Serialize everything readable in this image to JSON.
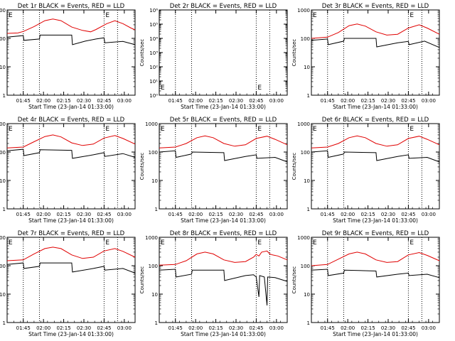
{
  "figure": {
    "xlabel": "Start Time (23-Jan-14 01:33:00)",
    "ylabel": "Counts/sec",
    "xtick_labels": [
      "01:45",
      "02:00",
      "02:15",
      "02:30",
      "02:45",
      "03:00"
    ],
    "marker_labels": [
      "E",
      "E"
    ],
    "colors": {
      "events": "#000000",
      "lld": "#e00000",
      "axis": "#000000"
    }
  },
  "chart_data": [
    {
      "type": "line",
      "title": "Det 1r BLACK = Events, RED = LLD",
      "ylim": [
        1,
        1000
      ],
      "yscale": "log",
      "ytick_labels": [
        "1",
        "10",
        "100",
        "1000"
      ],
      "vlines_min": [
        12,
        24,
        72,
        82
      ],
      "series": [
        {
          "key": "lld",
          "color": "#e00000",
          "values": [
            [
              0,
              150
            ],
            [
              8,
              155
            ],
            [
              12,
              175
            ],
            [
              20,
              260
            ],
            [
              28,
              420
            ],
            [
              34,
              480
            ],
            [
              40,
              420
            ],
            [
              48,
              250
            ],
            [
              56,
              190
            ],
            [
              62,
              170
            ],
            [
              66,
              205
            ],
            [
              74,
              330
            ],
            [
              80,
              420
            ],
            [
              86,
              330
            ],
            [
              92,
              230
            ],
            [
              95,
              200
            ]
          ]
        },
        {
          "key": "events",
          "color": "#000000",
          "values": [
            [
              0,
              110
            ],
            [
              12,
              125
            ],
            [
              12.5,
              85
            ],
            [
              24,
              95
            ],
            [
              24.5,
              130
            ],
            [
              48,
              130
            ],
            [
              48.5,
              60
            ],
            [
              58,
              80
            ],
            [
              66,
              95
            ],
            [
              72,
              105
            ],
            [
              72.5,
              70
            ],
            [
              86,
              78
            ],
            [
              95,
              60
            ]
          ]
        }
      ]
    },
    {
      "type": "line",
      "title": "Det 2r BLACK = Events, RED = LLD",
      "ylim": [
        1,
        1000000
      ],
      "yscale": "log",
      "ytick_labels": [
        "10⁰",
        "10¹",
        "10²",
        "10³",
        "10⁴",
        "10⁵",
        "10⁶"
      ],
      "vlines_min": [
        12,
        24,
        72,
        82
      ],
      "series": []
    },
    {
      "type": "line",
      "title": "Det 3r BLACK = Events, RED = LLD",
      "ylim": [
        1,
        1000
      ],
      "yscale": "log",
      "ytick_labels": [
        "1",
        "10",
        "100",
        "1000"
      ],
      "vlines_min": [
        12,
        24,
        72,
        82
      ],
      "series": [
        {
          "key": "lld",
          "color": "#e00000",
          "values": [
            [
              0,
              100
            ],
            [
              12,
              110
            ],
            [
              20,
              160
            ],
            [
              28,
              280
            ],
            [
              34,
              320
            ],
            [
              40,
              270
            ],
            [
              48,
              170
            ],
            [
              56,
              130
            ],
            [
              64,
              140
            ],
            [
              72,
              230
            ],
            [
              80,
              300
            ],
            [
              86,
              230
            ],
            [
              95,
              140
            ]
          ]
        },
        {
          "key": "events",
          "color": "#000000",
          "values": [
            [
              0,
              85
            ],
            [
              12,
              95
            ],
            [
              12.5,
              60
            ],
            [
              24,
              80
            ],
            [
              24.5,
              100
            ],
            [
              48,
              100
            ],
            [
              48.5,
              50
            ],
            [
              64,
              70
            ],
            [
              72,
              78
            ],
            [
              72.5,
              60
            ],
            [
              84,
              80
            ],
            [
              95,
              48
            ]
          ]
        }
      ]
    },
    {
      "type": "line",
      "title": "Det 4r BLACK = Events, RED = LLD",
      "ylim": [
        1,
        1000
      ],
      "yscale": "log",
      "ytick_labels": [
        "1",
        "10",
        "100",
        "1000"
      ],
      "vlines_min": [
        12,
        24,
        72,
        82
      ],
      "series": [
        {
          "key": "lld",
          "color": "#e00000",
          "values": [
            [
              0,
              140
            ],
            [
              12,
              150
            ],
            [
              20,
              230
            ],
            [
              28,
              350
            ],
            [
              34,
              400
            ],
            [
              40,
              340
            ],
            [
              48,
              210
            ],
            [
              56,
              170
            ],
            [
              64,
              190
            ],
            [
              72,
              310
            ],
            [
              80,
              380
            ],
            [
              86,
              300
            ],
            [
              95,
              190
            ]
          ]
        },
        {
          "key": "events",
          "color": "#000000",
          "values": [
            [
              0,
              110
            ],
            [
              12,
              125
            ],
            [
              12.5,
              75
            ],
            [
              24,
              95
            ],
            [
              24.5,
              120
            ],
            [
              48,
              115
            ],
            [
              48.5,
              60
            ],
            [
              64,
              80
            ],
            [
              72,
              95
            ],
            [
              72.5,
              70
            ],
            [
              86,
              88
            ],
            [
              95,
              65
            ]
          ]
        }
      ]
    },
    {
      "type": "line",
      "title": "Det 5r BLACK = Events, RED = LLD",
      "ylim": [
        1,
        1000
      ],
      "yscale": "log",
      "ytick_labels": [
        "1",
        "10",
        "100",
        "1000"
      ],
      "vlines_min": [
        12,
        24,
        72,
        82
      ],
      "series": [
        {
          "key": "lld",
          "color": "#e00000",
          "values": [
            [
              0,
              140
            ],
            [
              12,
              150
            ],
            [
              20,
              200
            ],
            [
              28,
              320
            ],
            [
              34,
              370
            ],
            [
              40,
              320
            ],
            [
              48,
              200
            ],
            [
              56,
              160
            ],
            [
              64,
              180
            ],
            [
              72,
              300
            ],
            [
              80,
              360
            ],
            [
              86,
              280
            ],
            [
              95,
              180
            ]
          ]
        },
        {
          "key": "events",
          "color": "#000000",
          "values": [
            [
              0,
              100
            ],
            [
              12,
              110
            ],
            [
              12.5,
              65
            ],
            [
              24,
              85
            ],
            [
              24.5,
              100
            ],
            [
              48,
              95
            ],
            [
              48.5,
              50
            ],
            [
              64,
              70
            ],
            [
              72,
              80
            ],
            [
              72.5,
              60
            ],
            [
              86,
              65
            ],
            [
              95,
              45
            ]
          ]
        }
      ]
    },
    {
      "type": "line",
      "title": "Det 6r BLACK = Events, RED = LLD",
      "ylim": [
        1,
        1000
      ],
      "yscale": "log",
      "ytick_labels": [
        "1",
        "10",
        "100",
        "1000"
      ],
      "vlines_min": [
        12,
        24,
        72,
        82
      ],
      "series": [
        {
          "key": "lld",
          "color": "#e00000",
          "values": [
            [
              0,
              140
            ],
            [
              12,
              150
            ],
            [
              20,
              200
            ],
            [
              28,
              320
            ],
            [
              34,
              370
            ],
            [
              40,
              320
            ],
            [
              48,
              200
            ],
            [
              56,
              160
            ],
            [
              64,
              180
            ],
            [
              72,
              300
            ],
            [
              80,
              360
            ],
            [
              86,
              280
            ],
            [
              95,
              180
            ]
          ]
        },
        {
          "key": "events",
          "color": "#000000",
          "values": [
            [
              0,
              100
            ],
            [
              12,
              110
            ],
            [
              12.5,
              65
            ],
            [
              24,
              85
            ],
            [
              24.5,
              100
            ],
            [
              48,
              95
            ],
            [
              48.5,
              50
            ],
            [
              64,
              70
            ],
            [
              72,
              80
            ],
            [
              72.5,
              60
            ],
            [
              86,
              65
            ],
            [
              95,
              45
            ]
          ]
        }
      ]
    },
    {
      "type": "line",
      "title": "Det 7r BLACK = Events, RED = LLD",
      "ylim": [
        1,
        1000
      ],
      "yscale": "log",
      "ytick_labels": [
        "1",
        "10",
        "100",
        "1000"
      ],
      "vlines_min": [
        12,
        24,
        72,
        82
      ],
      "series": [
        {
          "key": "lld",
          "color": "#e00000",
          "values": [
            [
              0,
              150
            ],
            [
              12,
              160
            ],
            [
              20,
              260
            ],
            [
              28,
              400
            ],
            [
              34,
              450
            ],
            [
              40,
              400
            ],
            [
              48,
              240
            ],
            [
              56,
              180
            ],
            [
              64,
              200
            ],
            [
              72,
              330
            ],
            [
              80,
              400
            ],
            [
              86,
              320
            ],
            [
              95,
              200
            ]
          ]
        },
        {
          "key": "events",
          "color": "#000000",
          "values": [
            [
              0,
              110
            ],
            [
              12,
              125
            ],
            [
              12.5,
              80
            ],
            [
              24,
              95
            ],
            [
              24.5,
              125
            ],
            [
              48,
              125
            ],
            [
              48.5,
              60
            ],
            [
              64,
              80
            ],
            [
              72,
              95
            ],
            [
              72.5,
              70
            ],
            [
              86,
              80
            ],
            [
              95,
              55
            ]
          ]
        }
      ]
    },
    {
      "type": "line",
      "title": "Det 8r BLACK = Events, RED = LLD",
      "ylim": [
        1,
        1000
      ],
      "yscale": "log",
      "ytick_labels": [
        "1",
        "10",
        "100",
        "1000"
      ],
      "vlines_min": [
        12,
        24,
        72,
        82
      ],
      "series": [
        {
          "key": "lld",
          "color": "#e00000",
          "values": [
            [
              0,
              105
            ],
            [
              12,
              110
            ],
            [
              20,
              150
            ],
            [
              28,
              260
            ],
            [
              34,
              300
            ],
            [
              40,
              260
            ],
            [
              48,
              160
            ],
            [
              56,
              130
            ],
            [
              64,
              140
            ],
            [
              70,
              200
            ],
            [
              72,
              250
            ],
            [
              74,
              220
            ],
            [
              76,
              300
            ],
            [
              80,
              330
            ],
            [
              82,
              260
            ],
            [
              84,
              240
            ],
            [
              88,
              220
            ],
            [
              95,
              160
            ]
          ]
        },
        {
          "key": "events",
          "color": "#000000",
          "values": [
            [
              0,
              70
            ],
            [
              12,
              75
            ],
            [
              12.5,
              40
            ],
            [
              24,
              50
            ],
            [
              24.5,
              70
            ],
            [
              48,
              70
            ],
            [
              48.5,
              30
            ],
            [
              64,
              45
            ],
            [
              70,
              48
            ],
            [
              72,
              40
            ],
            [
              74,
              8
            ],
            [
              74.5,
              45
            ],
            [
              78,
              40
            ],
            [
              80,
              4
            ],
            [
              80.5,
              40
            ],
            [
              86,
              38
            ],
            [
              95,
              28
            ]
          ]
        }
      ]
    },
    {
      "type": "line",
      "title": "Det 9r BLACK = Events, RED = LLD",
      "ylim": [
        1,
        1000
      ],
      "yscale": "log",
      "ytick_labels": [
        "1",
        "10",
        "100",
        "1000"
      ],
      "vlines_min": [
        12,
        24,
        72,
        82
      ],
      "series": [
        {
          "key": "lld",
          "color": "#e00000",
          "values": [
            [
              0,
              100
            ],
            [
              12,
              110
            ],
            [
              20,
              170
            ],
            [
              28,
              260
            ],
            [
              34,
              300
            ],
            [
              40,
              260
            ],
            [
              48,
              160
            ],
            [
              56,
              130
            ],
            [
              64,
              140
            ],
            [
              72,
              240
            ],
            [
              80,
              290
            ],
            [
              86,
              230
            ],
            [
              95,
              150
            ]
          ]
        },
        {
          "key": "events",
          "color": "#000000",
          "values": [
            [
              0,
              70
            ],
            [
              12,
              75
            ],
            [
              12.5,
              45
            ],
            [
              24,
              55
            ],
            [
              24.5,
              70
            ],
            [
              48,
              65
            ],
            [
              48.5,
              40
            ],
            [
              64,
              50
            ],
            [
              72,
              55
            ],
            [
              72.5,
              45
            ],
            [
              86,
              50
            ],
            [
              95,
              38
            ]
          ]
        }
      ]
    }
  ]
}
